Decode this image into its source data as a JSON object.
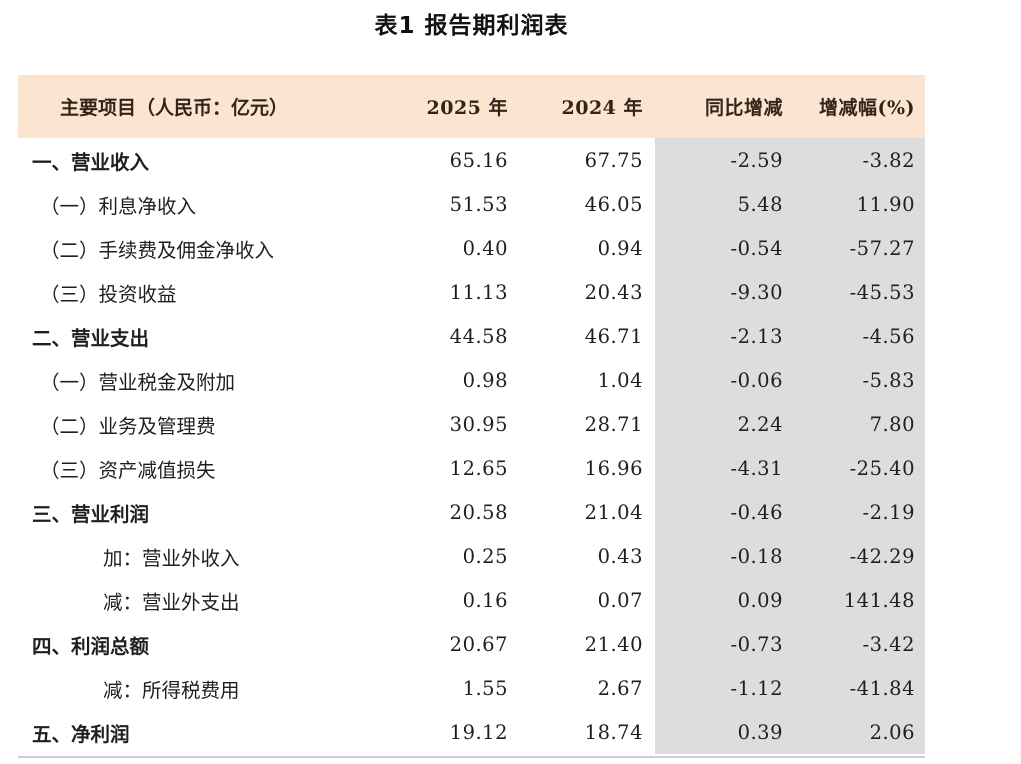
{
  "page": {
    "title": "表1 报告期利润表"
  },
  "colors": {
    "header_bg": "#fbe4d0",
    "shaded_columns_bg": "#dcdddc",
    "body_text": "#1f1f1f",
    "bottom_border": "#cfcfcf"
  },
  "table": {
    "columns": [
      "主要项目（人民币：亿元）",
      "2025 年",
      "2024 年",
      "同比增减",
      "增减幅(%)"
    ],
    "rows": [
      {
        "label": "一、营业收入",
        "level": 1,
        "y2025": "65.16",
        "y2024": "67.75",
        "change": "-2.59",
        "change_pct": "-3.82"
      },
      {
        "label": "（一）利息净收入",
        "level": 2,
        "y2025": "51.53",
        "y2024": "46.05",
        "change": "5.48",
        "change_pct": "11.90"
      },
      {
        "label": "（二）手续费及佣金净收入",
        "level": 2,
        "y2025": "0.40",
        "y2024": "0.94",
        "change": "-0.54",
        "change_pct": "-57.27"
      },
      {
        "label": "（三）投资收益",
        "level": 2,
        "y2025": "11.13",
        "y2024": "20.43",
        "change": "-9.30",
        "change_pct": "-45.53"
      },
      {
        "label": "二、营业支出",
        "level": 1,
        "y2025": "44.58",
        "y2024": "46.71",
        "change": "-2.13",
        "change_pct": "-4.56"
      },
      {
        "label": "（一）营业税金及附加",
        "level": 2,
        "y2025": "0.98",
        "y2024": "1.04",
        "change": "-0.06",
        "change_pct": "-5.83"
      },
      {
        "label": "（二）业务及管理费",
        "level": 2,
        "y2025": "30.95",
        "y2024": "28.71",
        "change": "2.24",
        "change_pct": "7.80"
      },
      {
        "label": "（三）资产减值损失",
        "level": 2,
        "y2025": "12.65",
        "y2024": "16.96",
        "change": "-4.31",
        "change_pct": "-25.40"
      },
      {
        "label": "三、营业利润",
        "level": 1,
        "y2025": "20.58",
        "y2024": "21.04",
        "change": "-0.46",
        "change_pct": "-2.19"
      },
      {
        "label": "加：营业外收入",
        "level": 3,
        "y2025": "0.25",
        "y2024": "0.43",
        "change": "-0.18",
        "change_pct": "-42.29"
      },
      {
        "label": "减：营业外支出",
        "level": 3,
        "y2025": "0.16",
        "y2024": "0.07",
        "change": "0.09",
        "change_pct": "141.48"
      },
      {
        "label": "四、利润总额",
        "level": 1,
        "y2025": "20.67",
        "y2024": "21.40",
        "change": "-0.73",
        "change_pct": "-3.42"
      },
      {
        "label": "减：所得税费用",
        "level": 3,
        "y2025": "1.55",
        "y2024": "2.67",
        "change": "-1.12",
        "change_pct": "-41.84"
      },
      {
        "label": "五、净利润",
        "level": 1,
        "y2025": "19.12",
        "y2024": "18.74",
        "change": "0.39",
        "change_pct": "2.06"
      }
    ]
  }
}
